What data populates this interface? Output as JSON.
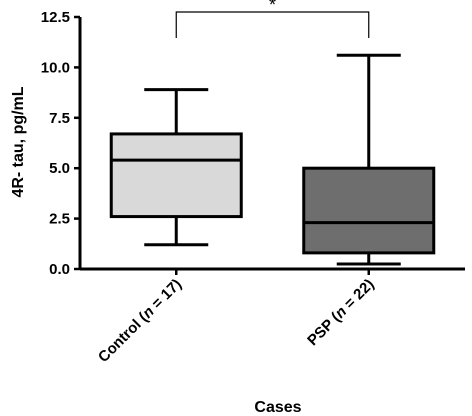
{
  "chart_data": {
    "type": "box",
    "title": "",
    "xlabel": "Cases",
    "ylabel": "4R- tau, pg/mL",
    "ylim": [
      0,
      12.5
    ],
    "yticks": [
      "0.0",
      "2.5",
      "5.0",
      "7.5",
      "10.0",
      "12.5"
    ],
    "grid": false,
    "categories": [
      {
        "prefix": "Control (",
        "italic": "n",
        "suffix": " = 17)"
      },
      {
        "prefix": "PSP (",
        "italic": "n",
        "suffix": " = 22)"
      }
    ],
    "boxes": [
      {
        "min": 1.2,
        "q1": 2.6,
        "median": 5.4,
        "q3": 6.7,
        "max": 8.9,
        "color": "#d9d9d9"
      },
      {
        "min": 0.25,
        "q1": 0.8,
        "median": 2.3,
        "q3": 5.0,
        "max": 10.6,
        "color": "#6e6e6e"
      }
    ],
    "significance": {
      "label": "*",
      "between": [
        0,
        1
      ]
    }
  }
}
